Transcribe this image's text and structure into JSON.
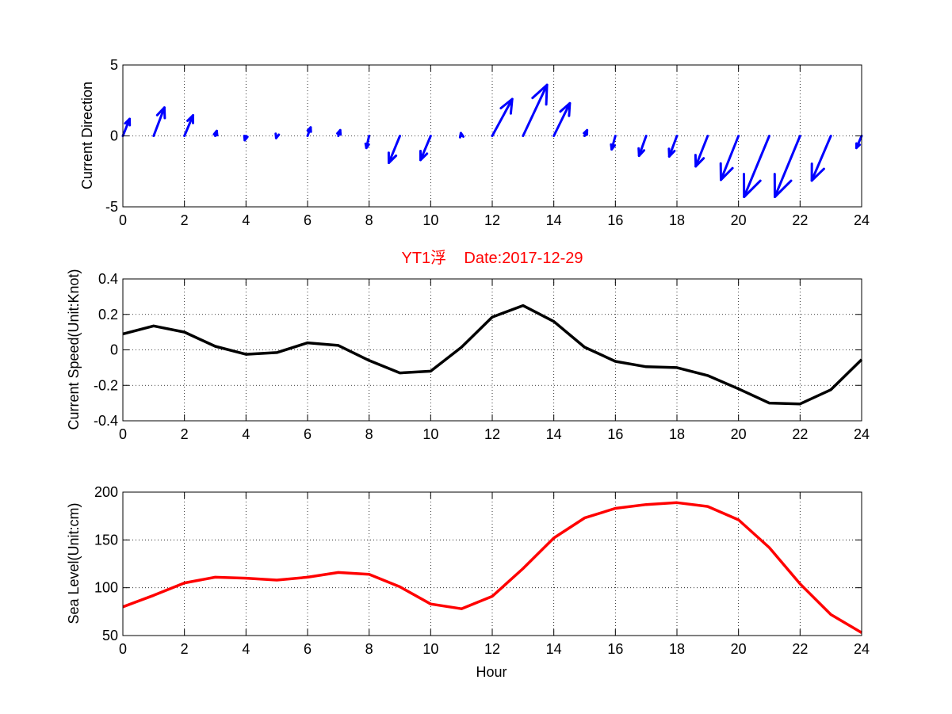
{
  "figure": {
    "title": "YT1浮    Date:2017-12-29",
    "colors": {
      "arrows": "#0000ff",
      "speed_line": "#000000",
      "sea_level_line": "#ff0000",
      "title": "#ff0000"
    }
  },
  "chart_data": [
    {
      "type": "quiver",
      "id": "direction",
      "title": "",
      "xlabel": "",
      "ylabel": "Current Direction",
      "xlim": [
        0,
        24
      ],
      "ylim": [
        -5,
        5
      ],
      "xticks": [
        "0",
        "2",
        "4",
        "6",
        "8",
        "10",
        "12",
        "14",
        "16",
        "18",
        "20",
        "22",
        "24"
      ],
      "yticks": [
        "-5",
        "0",
        "5"
      ],
      "grid": true,
      "x": [
        0,
        1,
        2,
        3,
        4,
        5,
        6,
        7,
        8,
        9,
        10,
        11,
        12,
        13,
        14,
        15,
        16,
        17,
        18,
        19,
        20,
        21,
        22,
        23,
        24
      ],
      "u": [
        0.22,
        0.35,
        0.28,
        0.05,
        -0.04,
        -0.02,
        0.1,
        0.06,
        -0.09,
        -0.36,
        -0.33,
        -0.02,
        0.65,
        0.78,
        0.52,
        0.08,
        -0.12,
        -0.23,
        -0.25,
        -0.39,
        -0.57,
        -0.82,
        -0.82,
        -0.62,
        -0.17
      ],
      "v": [
        1.2,
        2.0,
        1.45,
        0.35,
        -0.3,
        -0.15,
        0.6,
        0.4,
        -0.85,
        -1.9,
        -1.7,
        0.2,
        2.6,
        3.6,
        2.3,
        0.4,
        -0.95,
        -1.4,
        -1.45,
        -2.15,
        -3.1,
        -4.3,
        -4.3,
        -3.15,
        -0.85
      ]
    },
    {
      "type": "line",
      "id": "speed",
      "title": "",
      "xlabel": "",
      "ylabel": "Current Speed(Unit:Knot)",
      "xlim": [
        0,
        24
      ],
      "ylim": [
        -0.4,
        0.4
      ],
      "xticks": [
        "0",
        "2",
        "4",
        "6",
        "8",
        "10",
        "12",
        "14",
        "16",
        "18",
        "20",
        "22",
        "24"
      ],
      "yticks": [
        "-0.4",
        "-0.2",
        "0",
        "0.2",
        "0.4"
      ],
      "grid": true,
      "x": [
        0,
        1,
        2,
        3,
        4,
        5,
        6,
        7,
        8,
        9,
        10,
        11,
        12,
        13,
        14,
        15,
        16,
        17,
        18,
        19,
        20,
        21,
        22,
        23,
        24
      ],
      "y": [
        0.09,
        0.135,
        0.1,
        0.02,
        -0.025,
        -0.015,
        0.04,
        0.025,
        -0.06,
        -0.13,
        -0.12,
        0.015,
        0.185,
        0.25,
        0.16,
        0.015,
        -0.065,
        -0.095,
        -0.1,
        -0.145,
        -0.22,
        -0.3,
        -0.305,
        -0.225,
        -0.055
      ]
    },
    {
      "type": "line",
      "id": "sealevel",
      "title": "",
      "xlabel": "Hour",
      "ylabel": "Sea Level(Unit:cm)",
      "xlim": [
        0,
        24
      ],
      "ylim": [
        50,
        200
      ],
      "xticks": [
        "0",
        "2",
        "4",
        "6",
        "8",
        "10",
        "12",
        "14",
        "16",
        "18",
        "20",
        "22",
        "24"
      ],
      "yticks": [
        "50",
        "100",
        "150",
        "200"
      ],
      "grid": true,
      "x": [
        0,
        1,
        2,
        3,
        4,
        5,
        6,
        7,
        8,
        9,
        10,
        11,
        12,
        13,
        14,
        15,
        16,
        17,
        18,
        19,
        20,
        21,
        22,
        23,
        24
      ],
      "y": [
        80,
        92,
        105,
        111,
        110,
        108,
        111,
        116,
        114,
        101,
        83,
        78,
        91,
        120,
        152,
        173,
        183,
        187,
        189,
        185,
        171,
        142,
        104,
        72,
        53
      ]
    }
  ]
}
